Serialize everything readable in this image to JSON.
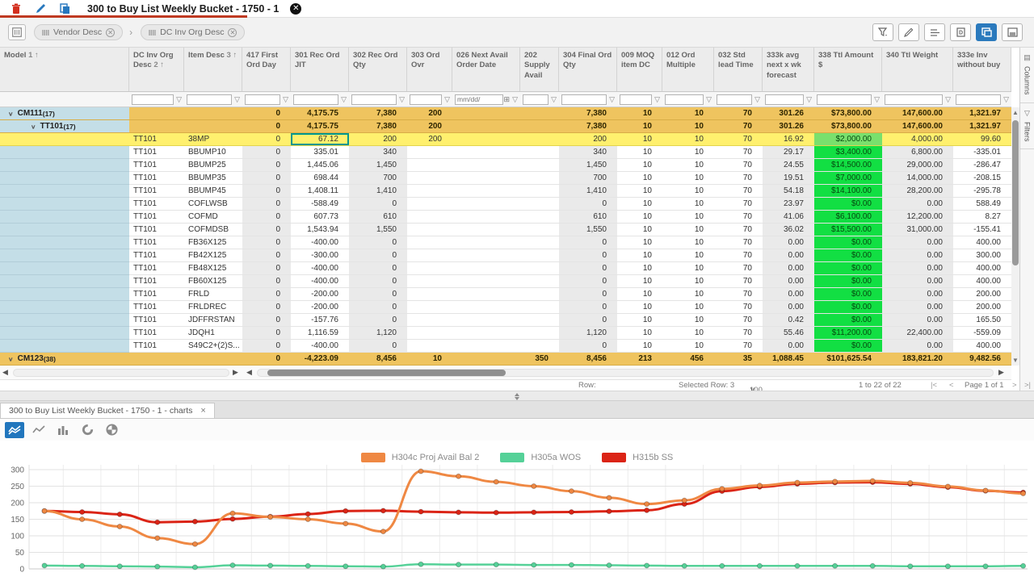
{
  "titlebar": {
    "tab_title": "300 to Buy List Weekly Bucket - 1750 - 1",
    "icons": [
      "delete",
      "edit",
      "copy"
    ],
    "close_label": "✕"
  },
  "grouping_bar": {
    "chips": [
      {
        "label": "Vendor Desc"
      },
      {
        "label": "DC Inv Org Desc"
      }
    ],
    "right_icons": [
      "filter",
      "edit",
      "view-list",
      "document",
      "panel-active",
      "panel"
    ]
  },
  "grid": {
    "columns": [
      {
        "label": "Model",
        "sort_order": "1"
      },
      {
        "label": "DC Inv Org Desc",
        "sort_order": "2"
      },
      {
        "label": "Item Desc",
        "sort_order": "3"
      },
      {
        "label": "417 First Ord Day"
      },
      {
        "label": "301 Rec Ord JIT"
      },
      {
        "label": "302 Rec Ord Qty"
      },
      {
        "label": "303 Ord Ovr"
      },
      {
        "label": "026 Next Avail Order Date"
      },
      {
        "label": "202 Supply Avail"
      },
      {
        "label": "304 Final Ord Qty"
      },
      {
        "label": "009 MOQ item DC"
      },
      {
        "label": "012 Ord Multiple"
      },
      {
        "label": "032 Std lead Time"
      },
      {
        "label": "333k avg next x wk forecast"
      },
      {
        "label": "338 Ttl Amount $"
      },
      {
        "label": "340 Ttl Weight"
      },
      {
        "label": "333e Inv without buy"
      }
    ],
    "date_filter_placeholder": "mm/dd/",
    "rows": [
      {
        "type": "group",
        "level": 0,
        "label": "CM111",
        "count": "(17)",
        "values": [
          "0",
          "4,175.75",
          "7,380",
          "200",
          "",
          "",
          "7,380",
          "10",
          "10",
          "70",
          "301.26",
          "$73,800.00",
          "147,600.00",
          "1,321.97"
        ]
      },
      {
        "type": "group",
        "level": 1,
        "label": "TT101",
        "count": "(17)",
        "values": [
          "0",
          "4,175.75",
          "7,380",
          "200",
          "",
          "",
          "7,380",
          "10",
          "10",
          "70",
          "301.26",
          "$73,800.00",
          "147,600.00",
          "1,321.97"
        ]
      },
      {
        "type": "data",
        "selected": true,
        "dc": "TT101",
        "item": "38MP",
        "values": [
          "0",
          "67.12",
          "200",
          "200",
          "",
          "",
          "200",
          "10",
          "10",
          "70",
          "16.92",
          "$2,000.00",
          "4,000.00",
          "99.60"
        ]
      },
      {
        "type": "data",
        "dc": "TT101",
        "item": "BBUMP10",
        "values": [
          "0",
          "335.01",
          "340",
          "",
          "",
          "",
          "340",
          "10",
          "10",
          "70",
          "29.17",
          "$3,400.00",
          "6,800.00",
          "-335.01"
        ]
      },
      {
        "type": "data",
        "dc": "TT101",
        "item": "BBUMP25",
        "values": [
          "0",
          "1,445.06",
          "1,450",
          "",
          "",
          "",
          "1,450",
          "10",
          "10",
          "70",
          "24.55",
          "$14,500.00",
          "29,000.00",
          "-286.47"
        ]
      },
      {
        "type": "data",
        "dc": "TT101",
        "item": "BBUMP35",
        "values": [
          "0",
          "698.44",
          "700",
          "",
          "",
          "",
          "700",
          "10",
          "10",
          "70",
          "19.51",
          "$7,000.00",
          "14,000.00",
          "-208.15"
        ]
      },
      {
        "type": "data",
        "dc": "TT101",
        "item": "BBUMP45",
        "values": [
          "0",
          "1,408.11",
          "1,410",
          "",
          "",
          "",
          "1,410",
          "10",
          "10",
          "70",
          "54.18",
          "$14,100.00",
          "28,200.00",
          "-295.78"
        ]
      },
      {
        "type": "data",
        "dc": "TT101",
        "item": "COFLWSB",
        "values": [
          "0",
          "-588.49",
          "0",
          "",
          "",
          "",
          "0",
          "10",
          "10",
          "70",
          "23.97",
          "$0.00",
          "0.00",
          "588.49"
        ]
      },
      {
        "type": "data",
        "dc": "TT101",
        "item": "COFMD",
        "values": [
          "0",
          "607.73",
          "610",
          "",
          "",
          "",
          "610",
          "10",
          "10",
          "70",
          "41.06",
          "$6,100.00",
          "12,200.00",
          "8.27"
        ]
      },
      {
        "type": "data",
        "dc": "TT101",
        "item": "COFMDSB",
        "values": [
          "0",
          "1,543.94",
          "1,550",
          "",
          "",
          "",
          "1,550",
          "10",
          "10",
          "70",
          "36.02",
          "$15,500.00",
          "31,000.00",
          "-155.41"
        ]
      },
      {
        "type": "data",
        "dc": "TT101",
        "item": "FB36X125",
        "values": [
          "0",
          "-400.00",
          "0",
          "",
          "",
          "",
          "0",
          "10",
          "10",
          "70",
          "0.00",
          "$0.00",
          "0.00",
          "400.00"
        ]
      },
      {
        "type": "data",
        "dc": "TT101",
        "item": "FB42X125",
        "values": [
          "0",
          "-300.00",
          "0",
          "",
          "",
          "",
          "0",
          "10",
          "10",
          "70",
          "0.00",
          "$0.00",
          "0.00",
          "300.00"
        ]
      },
      {
        "type": "data",
        "dc": "TT101",
        "item": "FB48X125",
        "values": [
          "0",
          "-400.00",
          "0",
          "",
          "",
          "",
          "0",
          "10",
          "10",
          "70",
          "0.00",
          "$0.00",
          "0.00",
          "400.00"
        ]
      },
      {
        "type": "data",
        "dc": "TT101",
        "item": "FB60X125",
        "values": [
          "0",
          "-400.00",
          "0",
          "",
          "",
          "",
          "0",
          "10",
          "10",
          "70",
          "0.00",
          "$0.00",
          "0.00",
          "400.00"
        ]
      },
      {
        "type": "data",
        "dc": "TT101",
        "item": "FRLD",
        "values": [
          "0",
          "-200.00",
          "0",
          "",
          "",
          "",
          "0",
          "10",
          "10",
          "70",
          "0.00",
          "$0.00",
          "0.00",
          "200.00"
        ]
      },
      {
        "type": "data",
        "dc": "TT101",
        "item": "FRLDREC",
        "values": [
          "0",
          "-200.00",
          "0",
          "",
          "",
          "",
          "0",
          "10",
          "10",
          "70",
          "0.00",
          "$0.00",
          "0.00",
          "200.00"
        ]
      },
      {
        "type": "data",
        "dc": "TT101",
        "item": "JDFFRSTAN",
        "values": [
          "0",
          "-157.76",
          "0",
          "",
          "",
          "",
          "0",
          "10",
          "10",
          "70",
          "0.42",
          "$0.00",
          "0.00",
          "165.50"
        ]
      },
      {
        "type": "data",
        "dc": "TT101",
        "item": "JDQH1",
        "values": [
          "0",
          "1,116.59",
          "1,120",
          "",
          "",
          "",
          "1,120",
          "10",
          "10",
          "70",
          "55.46",
          "$11,200.00",
          "22,400.00",
          "-559.09"
        ]
      },
      {
        "type": "data",
        "dc": "TT101",
        "item": "S49C2+(2)S...",
        "values": [
          "0",
          "-400.00",
          "0",
          "",
          "",
          "",
          "0",
          "10",
          "10",
          "70",
          "0.00",
          "$0.00",
          "0.00",
          "400.00"
        ]
      },
      {
        "type": "group",
        "level": 0,
        "label": "CM123",
        "count": "(38)",
        "gold_full": true,
        "values": [
          "0",
          "-4,223.09",
          "8,456",
          "10",
          "",
          "350",
          "8,456",
          "213",
          "456",
          "35",
          "1,088.45",
          "$101,625.54",
          "183,821.20",
          "9,482.56"
        ]
      }
    ],
    "status": {
      "row_label": "Row:",
      "selected_row": "Selected Row: 3",
      "page_size": "100",
      "range": "1 to 22 of 22",
      "page": "Page 1 of 1",
      "pager": [
        "|<",
        "<",
        ">",
        ">|"
      ]
    }
  },
  "side_rail": {
    "tabs": [
      {
        "label": "Columns",
        "icon": "columns"
      },
      {
        "label": "Filters",
        "icon": "filter"
      }
    ]
  },
  "chart_panel": {
    "tab_title": "300 to Buy List Weekly Bucket - 1750 - 1 - charts",
    "close_label": "×",
    "toolbar_icons": [
      "area-chart",
      "line-chart",
      "bar-chart",
      "donut-chart",
      "pie-chart"
    ]
  },
  "chart_data": {
    "type": "line",
    "x": [
      1,
      2,
      3,
      4,
      5,
      6,
      7,
      8,
      9,
      10,
      11,
      12,
      13,
      14,
      15,
      16,
      17,
      18,
      19,
      20,
      21,
      22,
      23,
      24,
      25,
      26,
      27
    ],
    "series": [
      {
        "name": "H304c Proj Avail Bal 2",
        "color": "#ef8843",
        "values": [
          175,
          150,
          128,
          93,
          75,
          168,
          157,
          150,
          137,
          113,
          295,
          280,
          263,
          250,
          235,
          215,
          196,
          207,
          242,
          252,
          261,
          264,
          266,
          260,
          249,
          237,
          228
        ]
      },
      {
        "name": "H305a WOS",
        "color": "#55d198",
        "values": [
          10,
          9,
          8,
          7,
          5,
          11,
          10,
          9,
          8,
          7,
          14,
          13,
          13,
          12,
          12,
          11,
          10,
          9,
          9,
          9,
          9,
          9,
          9,
          8,
          8,
          8,
          9
        ]
      },
      {
        "name": "H315b SS",
        "color": "#db2416",
        "values": [
          175,
          172,
          165,
          141,
          143,
          151,
          158,
          166,
          175,
          176,
          173,
          171,
          170,
          171,
          172,
          174,
          177,
          196,
          235,
          248,
          257,
          261,
          262,
          257,
          247,
          236,
          231
        ]
      }
    ],
    "title": "",
    "xlabel": "",
    "ylabel": "",
    "ylim": [
      0,
      300
    ],
    "yticks": [
      0,
      50,
      100,
      150,
      200,
      250,
      300
    ],
    "grid": true,
    "legend_position": "top"
  }
}
